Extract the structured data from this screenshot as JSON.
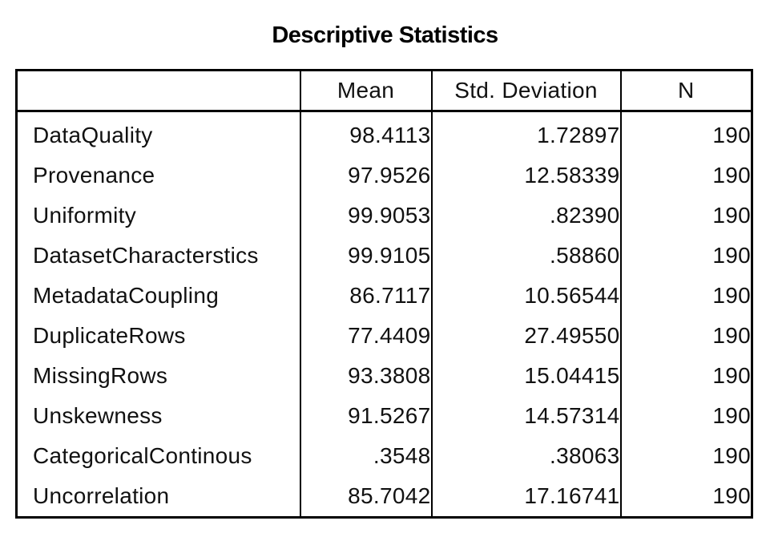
{
  "title": "Descriptive Statistics",
  "columns": [
    "",
    "Mean",
    "Std. Deviation",
    "N"
  ],
  "rows": [
    {
      "label": "DataQuality",
      "mean": "98.4113",
      "sd": "1.72897",
      "n": "190"
    },
    {
      "label": "Provenance",
      "mean": "97.9526",
      "sd": "12.58339",
      "n": "190"
    },
    {
      "label": "Uniformity",
      "mean": "99.9053",
      "sd": ".82390",
      "n": "190"
    },
    {
      "label": "DatasetCharacterstics",
      "mean": "99.9105",
      "sd": ".58860",
      "n": "190"
    },
    {
      "label": "MetadataCoupling",
      "mean": "86.7117",
      "sd": "10.56544",
      "n": "190"
    },
    {
      "label": "DuplicateRows",
      "mean": "77.4409",
      "sd": "27.49550",
      "n": "190"
    },
    {
      "label": "MissingRows",
      "mean": "93.3808",
      "sd": "15.04415",
      "n": "190"
    },
    {
      "label": "Unskewness",
      "mean": "91.5267",
      "sd": "14.57314",
      "n": "190"
    },
    {
      "label": "CategoricalContinous",
      "mean": ".3548",
      "sd": ".38063",
      "n": "190"
    },
    {
      "label": "Uncorrelation",
      "mean": "85.7042",
      "sd": "17.16741",
      "n": "190"
    }
  ]
}
